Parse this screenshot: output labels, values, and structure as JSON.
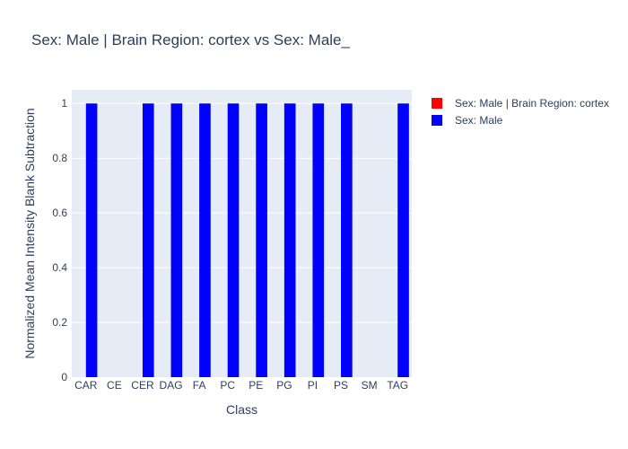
{
  "chart_data": {
    "type": "bar",
    "title": "Sex: Male | Brain Region: cortex  vs Sex: Male_",
    "xlabel": "Class",
    "ylabel": "Normalized Mean Intensity Blank Subtraction",
    "categories": [
      "CAR",
      "CE",
      "CER",
      "DAG",
      "FA",
      "PC",
      "PE",
      "PG",
      "PI",
      "PS",
      "SM",
      "TAG"
    ],
    "ylim": [
      0,
      1.05
    ],
    "yticks": [
      0,
      0.2,
      0.4,
      0.6,
      0.8,
      1
    ],
    "ytick_labels": [
      "0",
      "0.2",
      "0.4",
      "0.6",
      "0.8",
      "1"
    ],
    "grid": true,
    "legend_position": "top-right",
    "series": [
      {
        "name": "Sex: Male | Brain Region: cortex",
        "color": "#ff0000",
        "values": [
          0,
          0,
          0,
          0,
          0,
          0,
          0,
          0,
          0,
          0,
          0,
          0
        ]
      },
      {
        "name": "Sex: Male",
        "color": "#0000ff",
        "values": [
          1,
          0,
          1,
          1,
          1,
          1,
          1,
          1,
          1,
          1,
          0,
          1
        ]
      }
    ],
    "colors": {
      "plot_background": "#e5ecf6",
      "gridline": "#ffffff",
      "text": "#2a3f5f"
    }
  }
}
